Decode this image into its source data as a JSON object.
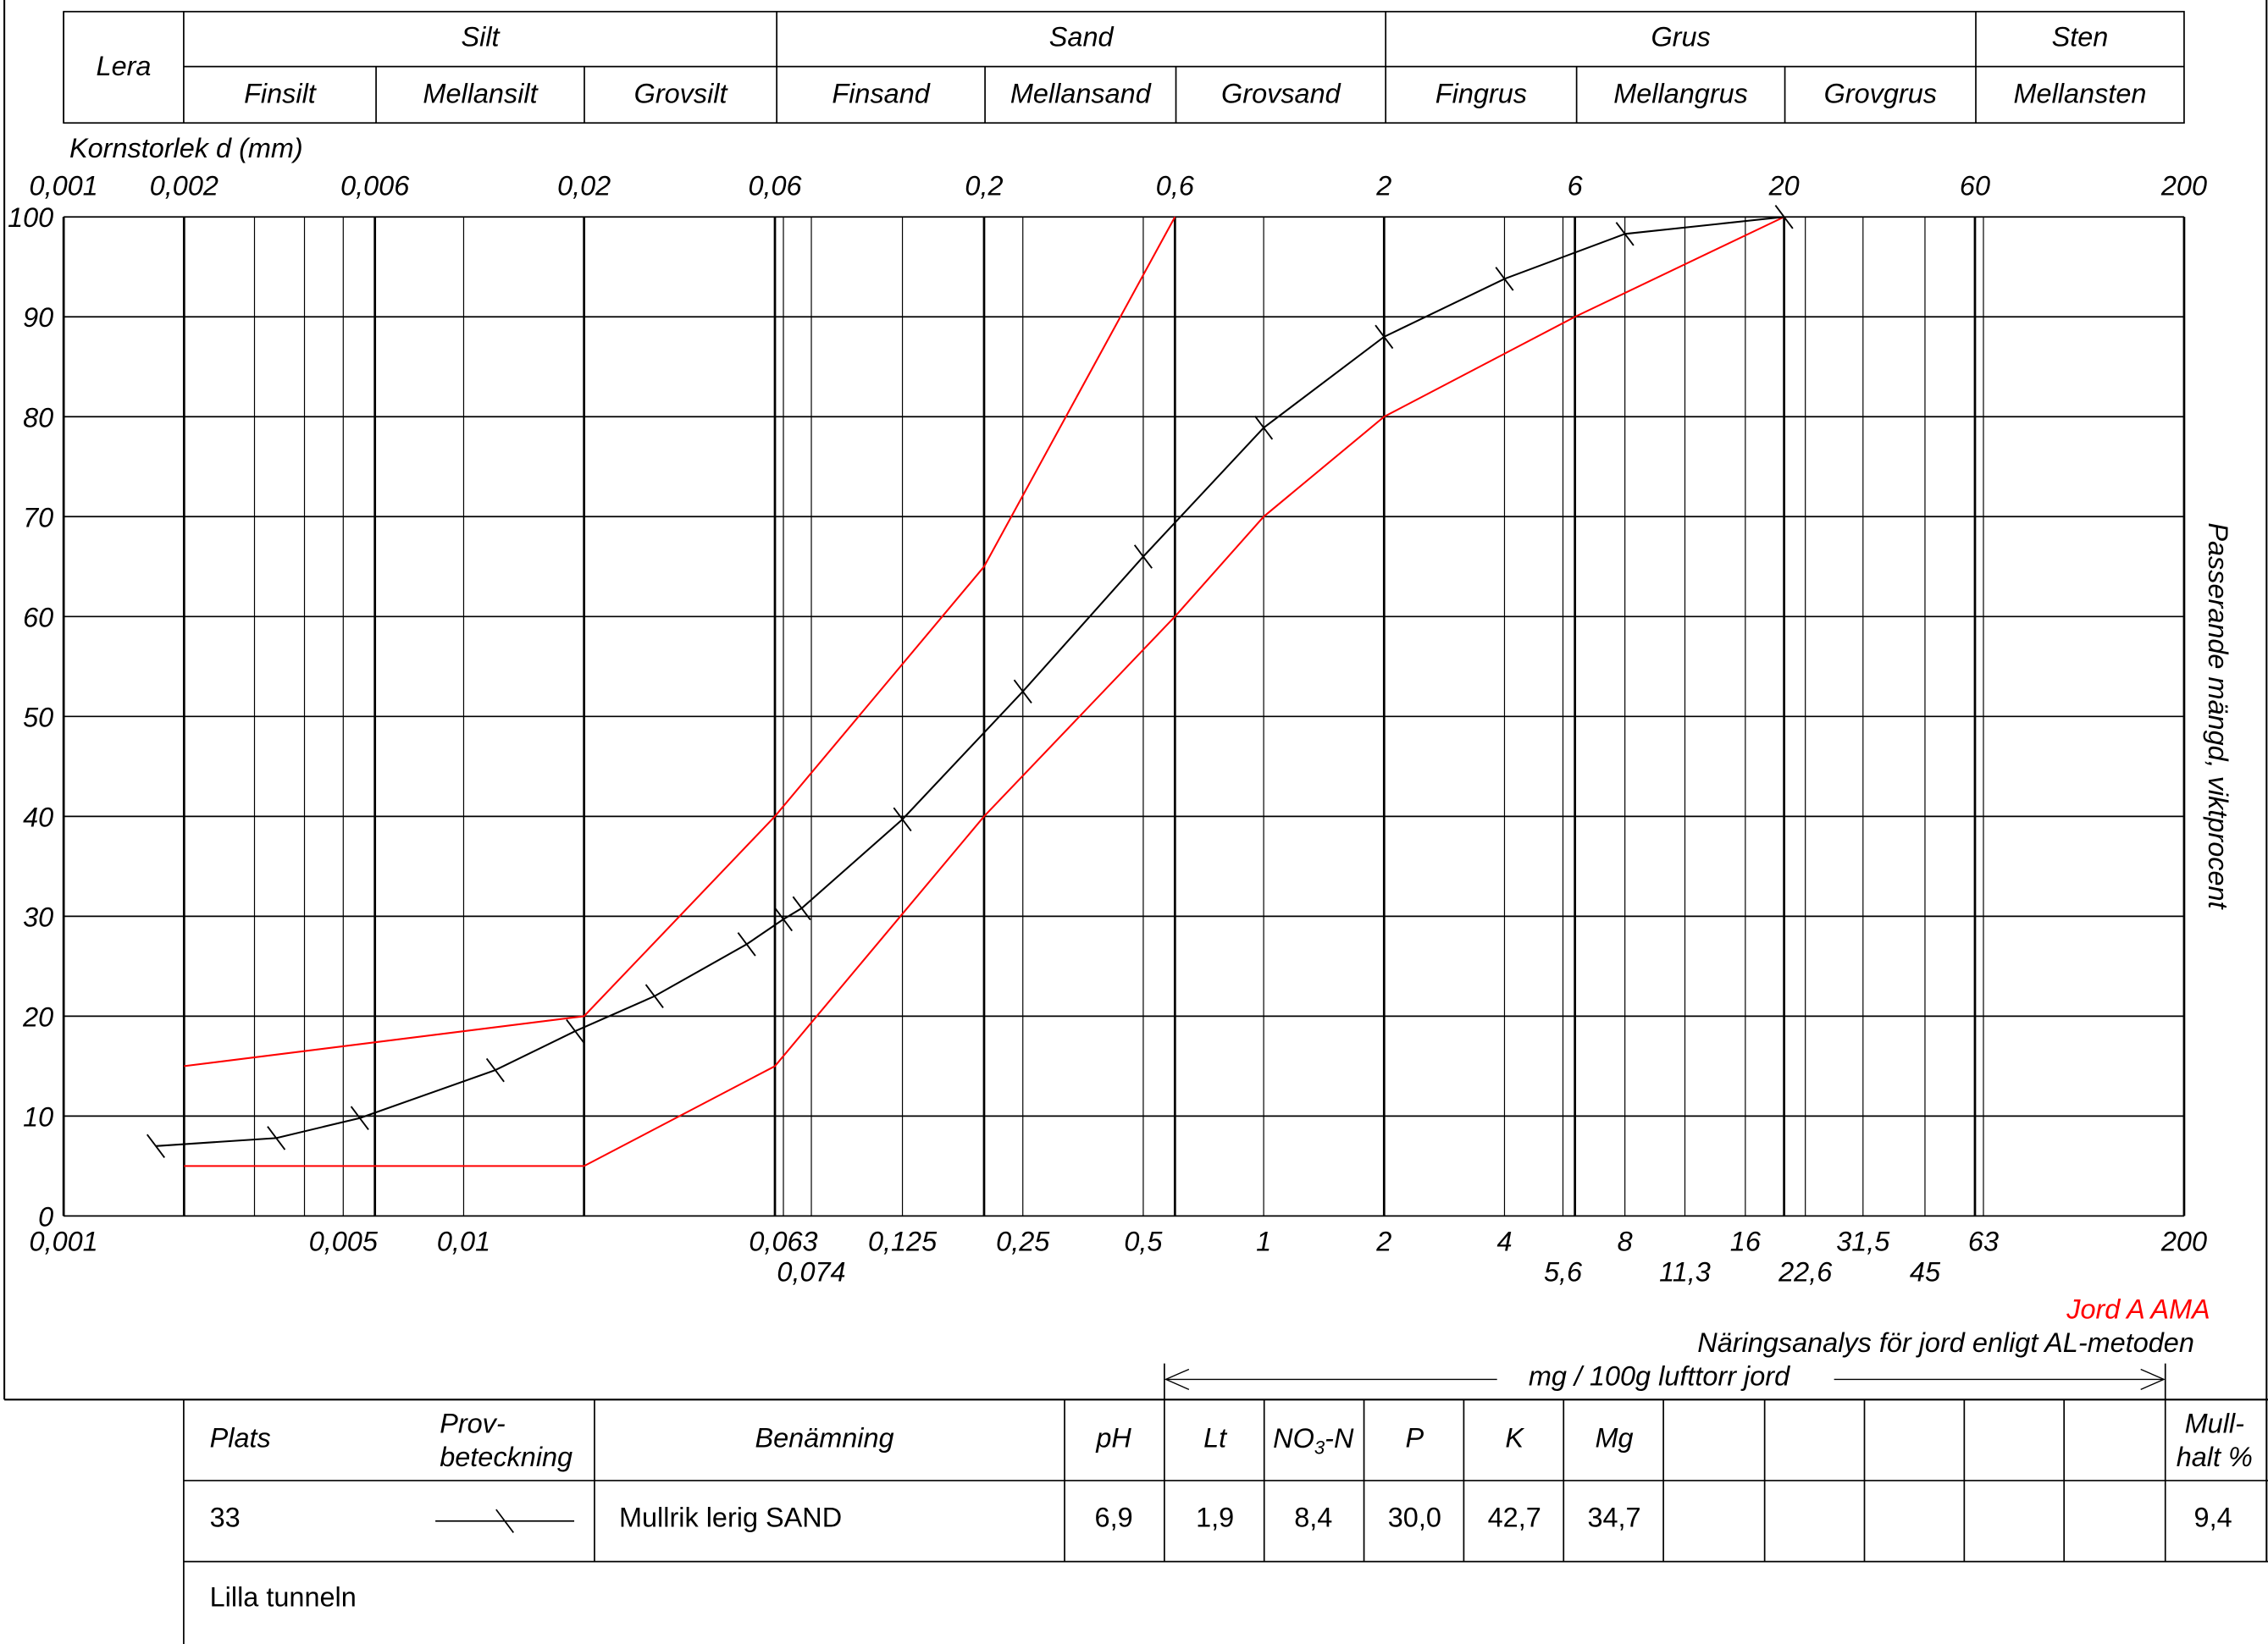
{
  "header_table": {
    "groups": [
      {
        "label": "Lera",
        "subs": []
      },
      {
        "label": "Silt",
        "subs": [
          "Finsilt",
          "Mellansilt",
          "Grovsilt"
        ]
      },
      {
        "label": "Sand",
        "subs": [
          "Finsand",
          "Mellansand",
          "Grovsand"
        ]
      },
      {
        "label": "Grus",
        "subs": [
          "Fingrus",
          "Mellangrus",
          "Grovgrus"
        ]
      },
      {
        "label": "Sten",
        "subs": [
          "Mellansten"
        ]
      }
    ]
  },
  "chart_data": {
    "type": "line",
    "x_label": "Kornstorlek d (mm)",
    "y_label": "Passerande mängd, viktprocent",
    "xscale": "log",
    "xlim": [
      0.001,
      200
    ],
    "ylim": [
      0,
      100
    ],
    "grid": true,
    "xticks_top": [
      {
        "value": 0.001,
        "label": "0,001"
      },
      {
        "value": 0.002,
        "label": "0,002"
      },
      {
        "value": 0.006,
        "label": "0,006"
      },
      {
        "value": 0.02,
        "label": "0,02"
      },
      {
        "value": 0.06,
        "label": "0,06"
      },
      {
        "value": 0.2,
        "label": "0,2"
      },
      {
        "value": 0.6,
        "label": "0,6"
      },
      2,
      6,
      20,
      60,
      200
    ],
    "xticks": [
      {
        "value": 0.001,
        "label": "0,001"
      },
      {
        "value": 0.005,
        "label": "0,005"
      },
      {
        "value": 0.01,
        "label": "0,01"
      },
      {
        "value": 0.063,
        "label": "0,063"
      },
      {
        "value": 0.125,
        "label": "0,125"
      },
      {
        "value": 0.25,
        "label": "0,25"
      },
      {
        "value": 0.5,
        "label": "0,5"
      },
      1,
      2,
      4,
      8,
      16,
      {
        "value": 31.5,
        "label": "31,5"
      },
      63,
      200
    ],
    "xticks_second_row": [
      {
        "value": 0.074,
        "label": "0,074"
      },
      {
        "value": 5.6,
        "label": "5,6"
      },
      {
        "value": 11.3,
        "label": "11,3"
      },
      {
        "value": 22.6,
        "label": "22,6"
      },
      45
    ],
    "xminor": [
      0.003,
      0.004
    ],
    "yticks": [
      0,
      10,
      20,
      30,
      40,
      50,
      60,
      70,
      80,
      90,
      100
    ],
    "series": [
      {
        "name": "Jord A AMA",
        "color": "#ff0000",
        "x": [
          0.002,
          0.02,
          0.06,
          0.2,
          0.6
        ],
        "values": [
          15,
          20,
          40,
          65,
          100
        ]
      },
      {
        "color": "#ff0000",
        "x": [
          0.002,
          0.02,
          0.06,
          0.2,
          0.6,
          1,
          2,
          6,
          20
        ],
        "values": [
          5,
          5,
          15,
          40,
          60,
          70,
          80,
          90,
          100
        ]
      },
      {
        "color": "#000000",
        "markers": true,
        "x": [
          0.0017,
          0.0034,
          0.0055,
          0.012,
          0.019,
          0.03,
          0.051,
          0.063,
          0.07,
          0.125,
          0.25,
          0.5,
          1,
          2,
          4,
          8,
          20
        ],
        "values": [
          7,
          7.8,
          9.8,
          14.6,
          18.5,
          22,
          27.2,
          29.7,
          30.8,
          39.7,
          52.5,
          66,
          78.9,
          88,
          93.8,
          98.3,
          100
        ]
      }
    ]
  },
  "analysis": {
    "title": "Näringsanalys för jord enligt AL-metoden",
    "unit": "mg / 100g lufttorr jord",
    "headers": {
      "plats": "Plats",
      "prov": [
        "Prov-",
        "beteckning"
      ],
      "benamning": "Benämning",
      "ph": "pH",
      "lt": "Lt",
      "no3": {
        "main": "NO",
        "sub": "3",
        "rest": "-N"
      },
      "p": "P",
      "k": "K",
      "mg": "Mg",
      "mull": [
        "Mull-",
        "halt %"
      ]
    },
    "row": [
      "33",
      "Mullrik lerig SAND",
      "6,9",
      "1,9",
      "8,4",
      "30,0",
      "42,7",
      "34,7",
      "9,4"
    ],
    "site": "Lilla tunneln"
  }
}
